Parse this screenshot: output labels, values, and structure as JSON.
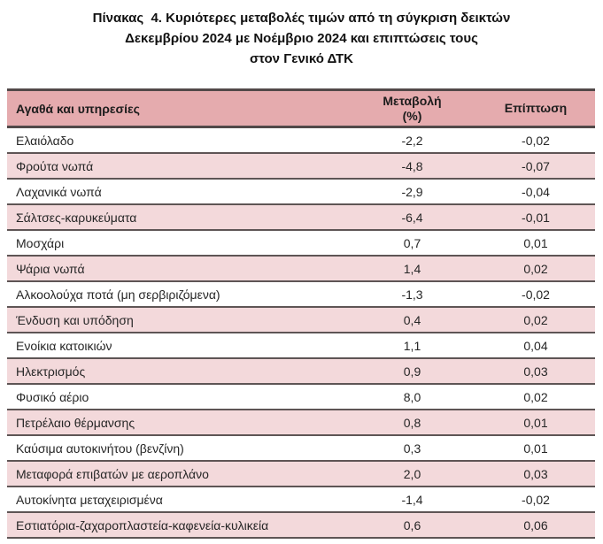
{
  "title": {
    "line1": "Πίνακας  4. Κυριότερες μεταβολές τιμών από τη σύγκριση δεικτών",
    "line2": "Δεκεμβρίου 2024 με Νοέμβριο 2024 και επιπτώσεις τους",
    "line3": "στον Γενικό ΔΤΚ"
  },
  "colors": {
    "header_background": "#e5abae",
    "alt_row_background": "#f3d9db",
    "border": "#5e5555",
    "text": "#262626"
  },
  "table": {
    "headers": {
      "goods": "Αγαθά και υπηρεσίες",
      "change_line1": "Μεταβολή",
      "change_line2": "(%)",
      "impact": "Επίπτωση"
    },
    "rows": [
      {
        "label": "Ελαιόλαδο",
        "change": "-2,2",
        "impact": "-0,02"
      },
      {
        "label": "Φρούτα νωπά",
        "change": "-4,8",
        "impact": "-0,07"
      },
      {
        "label": "Λαχανικά νωπά",
        "change": "-2,9",
        "impact": "-0,04"
      },
      {
        "label": "Σάλτσες-καρυκεύματα",
        "change": "-6,4",
        "impact": "-0,01"
      },
      {
        "label": "Μοσχάρι",
        "change": "0,7",
        "impact": "0,01"
      },
      {
        "label": "Ψάρια νωπά",
        "change": "1,4",
        "impact": "0,02"
      },
      {
        "label": "Αλκοολούχα ποτά (μη σερβιριζόμενα)",
        "change": "-1,3",
        "impact": "-0,02"
      },
      {
        "label": "Ένδυση και υπόδηση",
        "change": "0,4",
        "impact": "0,02"
      },
      {
        "label": "Ενοίκια κατοικιών",
        "change": "1,1",
        "impact": "0,04"
      },
      {
        "label": "Ηλεκτρισμός",
        "change": "0,9",
        "impact": "0,03"
      },
      {
        "label": "Φυσικό αέριο",
        "change": "8,0",
        "impact": "0,02"
      },
      {
        "label": "Πετρέλαιο θέρμανσης",
        "change": "0,8",
        "impact": "0,01"
      },
      {
        "label": "Καύσιμα αυτοκινήτου (βενζίνη)",
        "change": "0,3",
        "impact": "0,01"
      },
      {
        "label": "Μεταφορά επιβατών με αεροπλάνο",
        "change": "2,0",
        "impact": "0,03"
      },
      {
        "label": "Αυτοκίνητα μεταχειρισμένα",
        "change": "-1,4",
        "impact": "-0,02"
      },
      {
        "label": "Εστιατόρια-ζαχαροπλαστεία-καφενεία-κυλικεία",
        "change": "0,6",
        "impact": "0,06"
      }
    ]
  }
}
